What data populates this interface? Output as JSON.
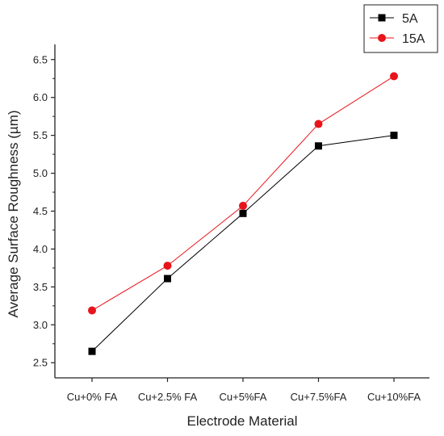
{
  "chart_data": {
    "type": "line",
    "title": "",
    "xlabel": "Electrode Material",
    "ylabel": "Average Surface Roughness (µm)",
    "categories": [
      "Cu+0% FA",
      "Cu+2.5% FA",
      "Cu+5%FA",
      "Cu+7.5%FA",
      "Cu+10%FA"
    ],
    "ylim": [
      2.3,
      6.7
    ],
    "yticks": [
      "2.5",
      "3.0",
      "3.5",
      "4.0",
      "4.5",
      "5.0",
      "5.5",
      "6.0",
      "6.5"
    ],
    "grid": false,
    "legend_position": "top-right",
    "series": [
      {
        "name": "5A",
        "color": "#000000",
        "marker": "square",
        "values": [
          2.65,
          3.61,
          4.47,
          5.36,
          5.5
        ]
      },
      {
        "name": "15A",
        "color": "#e8141b",
        "marker": "circle",
        "values": [
          3.19,
          3.78,
          4.57,
          5.65,
          6.28
        ]
      }
    ]
  }
}
